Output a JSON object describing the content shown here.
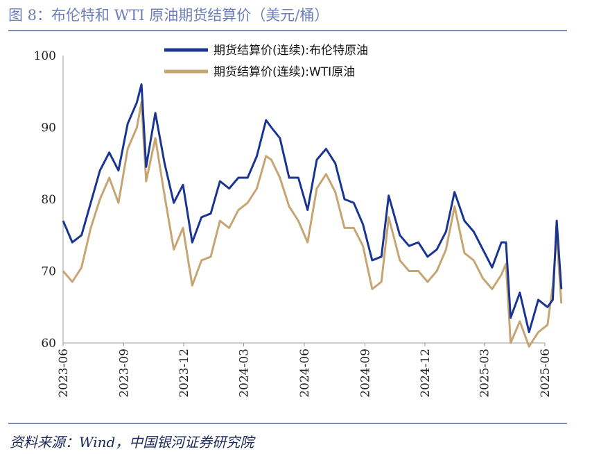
{
  "header": {
    "title": "图 8：布伦特和 WTI 原油期货结算价（美元/桶）"
  },
  "footer": {
    "source": "资料来源：Wind，中国银河证券研究院"
  },
  "colors": {
    "brent": "#1a3591",
    "wti": "#c6a573",
    "rule": "#7b8cc4"
  },
  "chart_data": {
    "type": "line",
    "title": "",
    "xlabel": "",
    "ylabel": "",
    "ylim": [
      60,
      100
    ],
    "yticks": [
      60,
      70,
      80,
      90,
      100
    ],
    "xlim": [
      "2023-06",
      "2025-06"
    ],
    "xticks": [
      "2023-06",
      "2023-09",
      "2023-12",
      "2024-03",
      "2024-06",
      "2024-09",
      "2024-12",
      "2025-03",
      "2025-06"
    ],
    "grid": false,
    "legend": "top-center",
    "series": [
      {
        "name": "期货结算价(连续):布伦特原油",
        "x": [
          "2023-06-01",
          "2023-06-15",
          "2023-06-29",
          "2023-07-13",
          "2023-07-27",
          "2023-08-10",
          "2023-08-24",
          "2023-09-07",
          "2023-09-21",
          "2023-09-28",
          "2023-10-05",
          "2023-10-19",
          "2023-11-02",
          "2023-11-16",
          "2023-11-30",
          "2023-12-14",
          "2023-12-28",
          "2024-01-11",
          "2024-01-25",
          "2024-02-08",
          "2024-02-22",
          "2024-03-07",
          "2024-03-21",
          "2024-04-04",
          "2024-04-12",
          "2024-04-25",
          "2024-05-09",
          "2024-05-23",
          "2024-06-06",
          "2024-06-20",
          "2024-07-04",
          "2024-07-18",
          "2024-08-01",
          "2024-08-15",
          "2024-08-29",
          "2024-09-12",
          "2024-09-26",
          "2024-10-07",
          "2024-10-24",
          "2024-11-07",
          "2024-11-21",
          "2024-12-05",
          "2024-12-19",
          "2025-01-02",
          "2025-01-15",
          "2025-01-30",
          "2025-02-13",
          "2025-02-27",
          "2025-03-13",
          "2025-03-27",
          "2025-04-03",
          "2025-04-10",
          "2025-04-24",
          "2025-05-08",
          "2025-05-22",
          "2025-06-05",
          "2025-06-13",
          "2025-06-19",
          "2025-06-26"
        ],
        "values": [
          77.0,
          74.0,
          75.0,
          79.5,
          84.0,
          86.5,
          84.0,
          90.5,
          93.5,
          96.0,
          84.5,
          92.0,
          85.0,
          79.5,
          82.0,
          74.0,
          77.5,
          78.0,
          82.5,
          81.5,
          83.0,
          83.0,
          86.0,
          91.0,
          90.0,
          88.5,
          83.0,
          83.0,
          78.5,
          85.5,
          87.0,
          85.0,
          80.0,
          79.5,
          76.5,
          71.5,
          72.0,
          80.5,
          75.0,
          73.5,
          74.0,
          72.0,
          73.0,
          75.5,
          81.0,
          77.0,
          75.5,
          73.0,
          70.5,
          74.0,
          74.0,
          63.5,
          67.0,
          61.5,
          66.0,
          65.0,
          66.0,
          77.0,
          67.5
        ]
      },
      {
        "name": "期货结算价(连续):WTI原油",
        "x": [
          "2023-06-01",
          "2023-06-15",
          "2023-06-29",
          "2023-07-13",
          "2023-07-27",
          "2023-08-10",
          "2023-08-24",
          "2023-09-07",
          "2023-09-21",
          "2023-09-28",
          "2023-10-05",
          "2023-10-19",
          "2023-11-02",
          "2023-11-16",
          "2023-11-30",
          "2023-12-14",
          "2023-12-28",
          "2024-01-11",
          "2024-01-25",
          "2024-02-08",
          "2024-02-22",
          "2024-03-07",
          "2024-03-21",
          "2024-04-04",
          "2024-04-12",
          "2024-04-25",
          "2024-05-09",
          "2024-05-23",
          "2024-06-06",
          "2024-06-20",
          "2024-07-04",
          "2024-07-18",
          "2024-08-01",
          "2024-08-15",
          "2024-08-29",
          "2024-09-12",
          "2024-09-26",
          "2024-10-07",
          "2024-10-24",
          "2024-11-07",
          "2024-11-21",
          "2024-12-05",
          "2024-12-19",
          "2025-01-02",
          "2025-01-15",
          "2025-01-30",
          "2025-02-13",
          "2025-02-27",
          "2025-03-13",
          "2025-03-27",
          "2025-04-03",
          "2025-04-10",
          "2025-04-24",
          "2025-05-08",
          "2025-05-22",
          "2025-06-05",
          "2025-06-13",
          "2025-06-19",
          "2025-06-26"
        ],
        "values": [
          70.0,
          68.5,
          70.5,
          76.0,
          80.0,
          83.0,
          79.5,
          87.0,
          90.0,
          93.5,
          82.5,
          88.5,
          80.5,
          73.0,
          76.0,
          68.0,
          71.5,
          72.0,
          77.0,
          76.0,
          78.5,
          79.5,
          81.5,
          86.0,
          85.5,
          83.0,
          79.0,
          77.0,
          74.0,
          81.5,
          83.5,
          81.0,
          76.0,
          76.0,
          73.5,
          67.5,
          68.5,
          77.5,
          71.5,
          70.0,
          70.0,
          68.5,
          70.0,
          73.0,
          79.0,
          72.5,
          71.5,
          69.0,
          67.5,
          69.5,
          71.0,
          60.0,
          63.0,
          59.5,
          61.5,
          62.5,
          68.0,
          75.0,
          65.5
        ]
      }
    ]
  }
}
